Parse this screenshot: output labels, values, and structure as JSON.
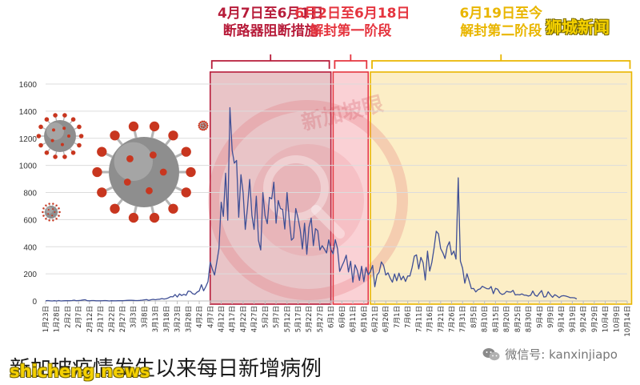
{
  "title": "新加坡疫情发生以来每日新增病例",
  "watermarks": {
    "brand": "狮城新闻",
    "site": "shicheng.news",
    "stamp": "新加坡眼"
  },
  "wechat": {
    "label": "微信号: kanxinjiapo",
    "icon": "wechat-icon"
  },
  "virus_icons": [
    "coronavirus-icon",
    "coronavirus-icon",
    "coronavirus-icon",
    "coronavirus-icon"
  ],
  "phases": [
    {
      "date": "4月7日至6月1日",
      "name": "断路器阻断措施",
      "color": "#b71c3a",
      "fill": "#c0555f",
      "start": "4月7日",
      "end": "6月1日"
    },
    {
      "date": "6月2日至6月18日",
      "name": "解封第一阶段",
      "color": "#e5353f",
      "fill": "#f07c86",
      "start": "6月2日",
      "end": "6月18日"
    },
    {
      "date": "6月19日至今",
      "name": "解封第二阶段",
      "color": "#e9b600",
      "fill": "#f7cf5c",
      "start": "6月19日",
      "end": "10月14日"
    }
  ],
  "chart_data": {
    "type": "line",
    "title": "新加坡疫情发生以来每日新增病例",
    "xlabel": "",
    "ylabel": "",
    "ylim": [
      0,
      1600
    ],
    "yticks": [
      "0",
      "200",
      "400",
      "600",
      "800",
      "1000",
      "1200",
      "1400",
      "1600"
    ],
    "grid": true,
    "xticks": [
      "1月23日",
      "1月28日",
      "2月2日",
      "2月7日",
      "2月12日",
      "2月17日",
      "2月22日",
      "2月27日",
      "3月3日",
      "3月8日",
      "3月13日",
      "3月18日",
      "3月23日",
      "3月28日",
      "4月2日",
      "4月7日",
      "4月12日",
      "4月17日",
      "4月22日",
      "4月27日",
      "5月2日",
      "5月7日",
      "5月12日",
      "5月17日",
      "5月22日",
      "5月27日",
      "6月1日",
      "6月6日",
      "6月11日",
      "6月16日",
      "6月21日",
      "6月26日",
      "7月1日",
      "7月6日",
      "7月11日",
      "7月16日",
      "7月21日",
      "7月26日",
      "7月31日",
      "8月5日",
      "8月10日",
      "8月15日",
      "8月20日",
      "8月25日",
      "8月30日",
      "9月4日",
      "9月9日",
      "9月14日",
      "9月19日",
      "9月24日",
      "9月29日",
      "10月4日",
      "10月9日",
      "10月14日"
    ],
    "series": [
      {
        "values": [
          1,
          3,
          1,
          0,
          2,
          0,
          3,
          0,
          1,
          2,
          2,
          2,
          3,
          6,
          2,
          3,
          4,
          7,
          9,
          2,
          1,
          3,
          3,
          1,
          1,
          1,
          2,
          3,
          2,
          0,
          2,
          1,
          1,
          2,
          2,
          2,
          3,
          4,
          5,
          5,
          4,
          3,
          3,
          4,
          6,
          8,
          10,
          5,
          9,
          12,
          9,
          12,
          13,
          18,
          14,
          17,
          23,
          32,
          30,
          47,
          29,
          52,
          40,
          49,
          42,
          73,
          70,
          54,
          49,
          65,
          74,
          120,
          75,
          106,
          142,
          287,
          233,
          191,
          287,
          386,
          728,
          624,
          942,
          596,
          1426,
          1111,
          1016,
          1037,
          618,
          931,
          799,
          528,
          690,
          897,
          632,
          528,
          773,
          447,
          376,
          799,
          630,
          570,
          764,
          753,
          876,
          573,
          741,
          682,
          675,
          530,
          800,
          605,
          448,
          465,
          682,
          613,
          528,
          383,
          573,
          344,
          544,
          611,
          408,
          533,
          518,
          376,
          408,
          383,
          354,
          451,
          382,
          347,
          452,
          386,
          218,
          257,
          292,
          338,
          214,
          293,
          138,
          266,
          226,
          151,
          256,
          142,
          247,
          192,
          218,
          262,
          105,
          191,
          213,
          288,
          262,
          191,
          207,
          169,
          138,
          199,
          149,
          205,
          155,
          183,
          144,
          184,
          184,
          246,
          330,
          340,
          236,
          322,
          282,
          154,
          367,
          220,
          284,
          390,
          514,
          495,
          387,
          355,
          313,
          400,
          437,
          340,
          368,
          309,
          908,
          294,
          242,
          131,
          201,
          147,
          91,
          92,
          67,
          83,
          89,
          108,
          99,
          91,
          89,
          106,
          54,
          93,
          86,
          59,
          48,
          53,
          71,
          67,
          65,
          78,
          44,
          47,
          45,
          52,
          43,
          42,
          36,
          42,
          73,
          42,
          35,
          57,
          77,
          29,
          32,
          68,
          45,
          27,
          46,
          37,
          24,
          36,
          39,
          36,
          31,
          24,
          24,
          23,
          15
        ]
      }
    ]
  }
}
